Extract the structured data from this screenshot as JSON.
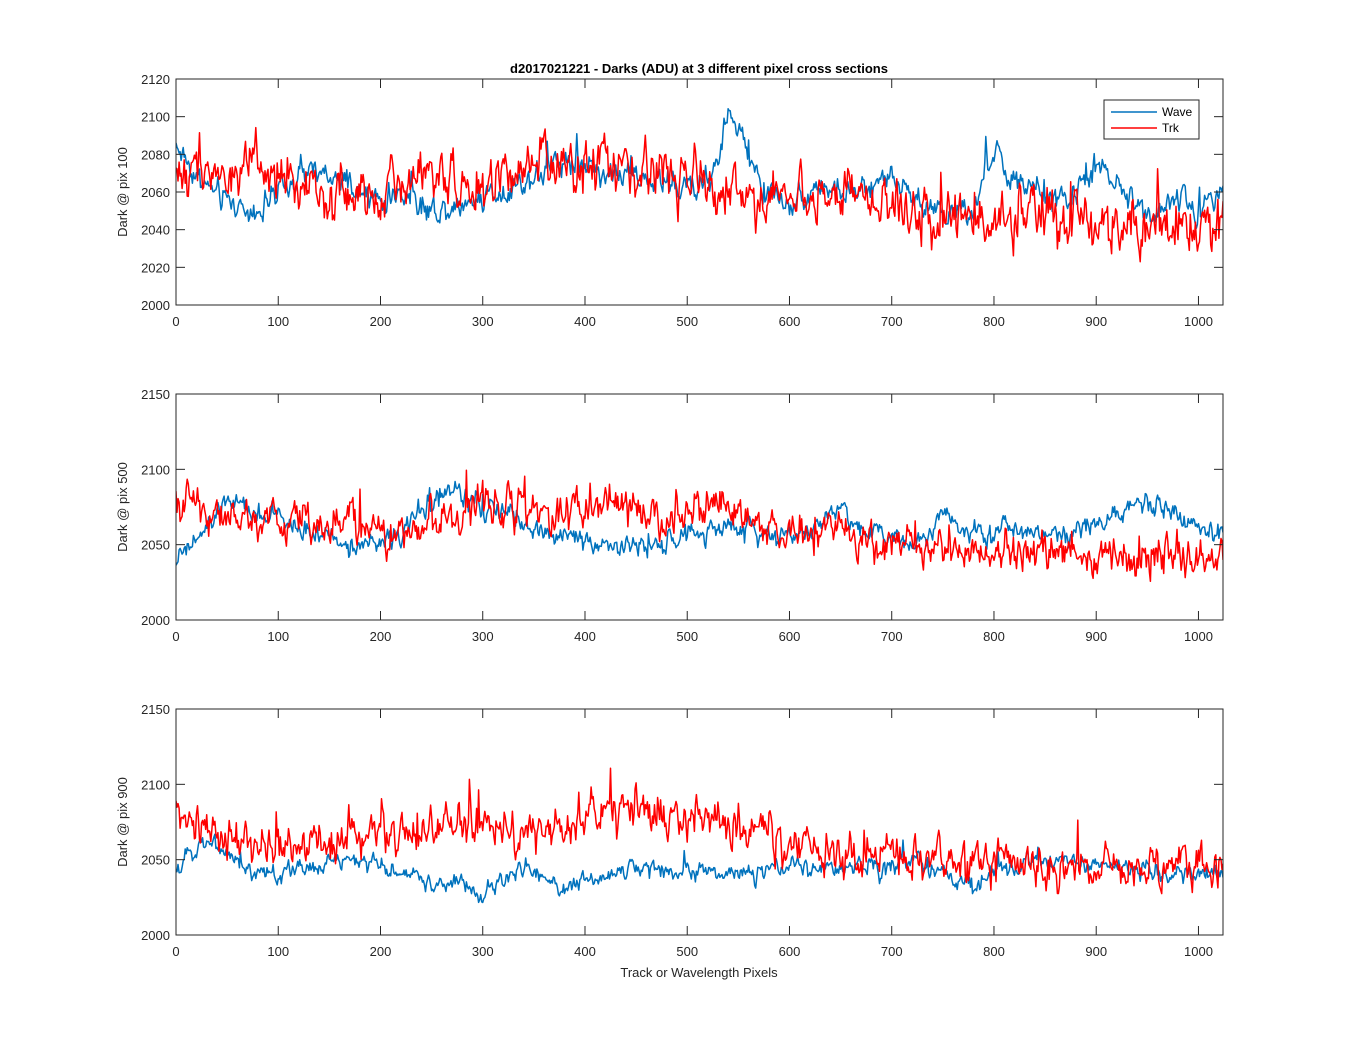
{
  "title": "d2017021221 - Darks (ADU) at 3 different pixel cross sections",
  "xlabel": "Track or Wavelength Pixels",
  "colors": {
    "wave": "#0072BD",
    "trk": "#FF0000",
    "axes": "#262626"
  },
  "legend": {
    "placement": "top-right",
    "panel": 0,
    "entries": [
      "Wave",
      "Trk"
    ]
  },
  "chart_data": [
    {
      "type": "line",
      "ylabel": "Dark @ pix 100",
      "xlim": [
        0,
        1024
      ],
      "ylim": [
        2000,
        2120
      ],
      "xticks": [
        0,
        100,
        200,
        300,
        400,
        500,
        600,
        700,
        800,
        900,
        1000
      ],
      "yticks": [
        2000,
        2020,
        2040,
        2060,
        2080,
        2100,
        2120
      ],
      "xtick_labels": [
        "0",
        "100",
        "200",
        "300",
        "400",
        "500",
        "600",
        "700",
        "800",
        "900",
        "1000"
      ],
      "ytick_labels": [
        "2000",
        "2020",
        "2040",
        "2060",
        "2080",
        "2100",
        "2120"
      ],
      "series": [
        {
          "name": "Wave",
          "x": [
            0,
            25,
            50,
            75,
            100,
            125,
            150,
            175,
            200,
            225,
            250,
            275,
            300,
            325,
            350,
            375,
            400,
            425,
            450,
            475,
            500,
            525,
            540,
            550,
            575,
            600,
            625,
            650,
            675,
            700,
            725,
            750,
            775,
            800,
            825,
            850,
            875,
            900,
            925,
            950,
            975,
            1000,
            1024
          ],
          "y": [
            2085,
            2065,
            2055,
            2050,
            2058,
            2070,
            2068,
            2060,
            2055,
            2060,
            2050,
            2053,
            2058,
            2062,
            2068,
            2078,
            2075,
            2070,
            2068,
            2065,
            2062,
            2068,
            2102,
            2092,
            2060,
            2055,
            2063,
            2060,
            2058,
            2072,
            2055,
            2050,
            2045,
            2082,
            2062,
            2058,
            2055,
            2074,
            2060,
            2050,
            2055,
            2050,
            2068
          ],
          "noise": 7
        },
        {
          "name": "Trk",
          "x": [
            0,
            25,
            50,
            75,
            100,
            125,
            150,
            175,
            200,
            225,
            250,
            275,
            300,
            325,
            350,
            375,
            400,
            425,
            450,
            475,
            500,
            525,
            550,
            575,
            600,
            625,
            650,
            675,
            700,
            725,
            750,
            775,
            800,
            825,
            850,
            875,
            900,
            925,
            950,
            975,
            1000,
            1024
          ],
          "y": [
            2070,
            2075,
            2068,
            2070,
            2065,
            2062,
            2060,
            2058,
            2063,
            2065,
            2068,
            2065,
            2063,
            2065,
            2070,
            2075,
            2078,
            2073,
            2070,
            2072,
            2068,
            2065,
            2060,
            2055,
            2058,
            2060,
            2057,
            2055,
            2050,
            2048,
            2050,
            2048,
            2045,
            2048,
            2046,
            2043,
            2045,
            2042,
            2040,
            2042,
            2043,
            2045
          ],
          "noise": 14
        }
      ]
    },
    {
      "type": "line",
      "ylabel": "Dark @ pix 500",
      "xlim": [
        0,
        1024
      ],
      "ylim": [
        2000,
        2150
      ],
      "xticks": [
        0,
        100,
        200,
        300,
        400,
        500,
        600,
        700,
        800,
        900,
        1000
      ],
      "yticks": [
        2000,
        2050,
        2100,
        2150
      ],
      "xtick_labels": [
        "0",
        "100",
        "200",
        "300",
        "400",
        "500",
        "600",
        "700",
        "800",
        "900",
        "1000"
      ],
      "ytick_labels": [
        "2000",
        "2050",
        "2100",
        "2150"
      ],
      "series": [
        {
          "name": "Wave",
          "x": [
            0,
            25,
            50,
            75,
            100,
            125,
            150,
            175,
            200,
            225,
            250,
            275,
            300,
            325,
            350,
            375,
            400,
            425,
            450,
            475,
            500,
            525,
            550,
            575,
            600,
            625,
            650,
            675,
            700,
            725,
            750,
            775,
            800,
            825,
            850,
            875,
            900,
            925,
            950,
            975,
            1000,
            1024
          ],
          "y": [
            2040,
            2055,
            2080,
            2070,
            2068,
            2060,
            2055,
            2050,
            2050,
            2060,
            2080,
            2085,
            2075,
            2070,
            2060,
            2055,
            2055,
            2050,
            2048,
            2050,
            2055,
            2060,
            2062,
            2058,
            2055,
            2062,
            2075,
            2060,
            2055,
            2052,
            2072,
            2060,
            2055,
            2062,
            2058,
            2060,
            2065,
            2072,
            2080,
            2072,
            2060,
            2058
          ],
          "noise": 7
        },
        {
          "name": "Trk",
          "x": [
            0,
            25,
            50,
            75,
            100,
            125,
            150,
            175,
            200,
            225,
            250,
            275,
            300,
            325,
            350,
            375,
            400,
            425,
            450,
            475,
            500,
            525,
            550,
            575,
            600,
            625,
            650,
            675,
            700,
            725,
            750,
            775,
            800,
            825,
            850,
            875,
            900,
            925,
            950,
            975,
            1000,
            1024
          ],
          "y": [
            2080,
            2075,
            2070,
            2065,
            2065,
            2068,
            2066,
            2063,
            2058,
            2060,
            2065,
            2070,
            2078,
            2080,
            2072,
            2074,
            2077,
            2075,
            2072,
            2070,
            2075,
            2070,
            2066,
            2063,
            2058,
            2060,
            2058,
            2055,
            2052,
            2050,
            2048,
            2048,
            2046,
            2045,
            2044,
            2043,
            2043,
            2042,
            2042,
            2041,
            2042,
            2045
          ],
          "noise": 13
        }
      ]
    },
    {
      "type": "line",
      "ylabel": "Dark @ pix 900",
      "xlim": [
        0,
        1024
      ],
      "ylim": [
        2000,
        2150
      ],
      "xticks": [
        0,
        100,
        200,
        300,
        400,
        500,
        600,
        700,
        800,
        900,
        1000
      ],
      "yticks": [
        2000,
        2050,
        2100,
        2150
      ],
      "xtick_labels": [
        "0",
        "100",
        "200",
        "300",
        "400",
        "500",
        "600",
        "700",
        "800",
        "900",
        "1000"
      ],
      "ytick_labels": [
        "2000",
        "2050",
        "2100",
        "2150"
      ],
      "series": [
        {
          "name": "Wave",
          "x": [
            0,
            25,
            50,
            75,
            100,
            125,
            150,
            175,
            200,
            225,
            250,
            275,
            300,
            325,
            350,
            375,
            400,
            425,
            450,
            475,
            500,
            525,
            550,
            575,
            600,
            625,
            650,
            675,
            700,
            725,
            750,
            775,
            800,
            825,
            850,
            875,
            900,
            925,
            950,
            975,
            1000,
            1024
          ],
          "y": [
            2040,
            2065,
            2055,
            2042,
            2040,
            2045,
            2048,
            2050,
            2045,
            2040,
            2035,
            2035,
            2025,
            2040,
            2045,
            2030,
            2035,
            2040,
            2045,
            2043,
            2045,
            2040,
            2042,
            2040,
            2045,
            2045,
            2043,
            2045,
            2048,
            2050,
            2040,
            2030,
            2042,
            2048,
            2050,
            2048,
            2046,
            2045,
            2043,
            2040,
            2040,
            2040
          ],
          "noise": 6
        },
        {
          "name": "Trk",
          "x": [
            0,
            25,
            50,
            75,
            100,
            125,
            150,
            175,
            200,
            225,
            250,
            275,
            300,
            325,
            350,
            375,
            400,
            425,
            450,
            475,
            500,
            525,
            550,
            575,
            600,
            625,
            650,
            675,
            700,
            725,
            750,
            775,
            800,
            825,
            850,
            875,
            900,
            925,
            950,
            975,
            1000,
            1024
          ],
          "y": [
            2080,
            2070,
            2065,
            2060,
            2058,
            2060,
            2062,
            2068,
            2075,
            2070,
            2068,
            2070,
            2072,
            2065,
            2068,
            2070,
            2075,
            2080,
            2082,
            2080,
            2078,
            2075,
            2070,
            2065,
            2060,
            2058,
            2056,
            2052,
            2050,
            2050,
            2050,
            2048,
            2050,
            2050,
            2048,
            2048,
            2047,
            2045,
            2044,
            2045,
            2045,
            2046
          ],
          "noise": 14
        }
      ]
    }
  ]
}
